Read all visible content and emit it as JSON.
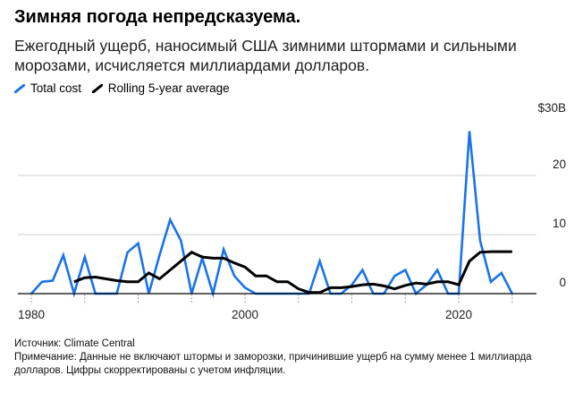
{
  "header": {
    "title": "Зимняя погода непредсказуема.",
    "subtitle": "Ежегодный ущерб, наносимый США зимними штормами и сильными морозами, исчисляется миллиардами долларов."
  },
  "legend": {
    "items": [
      {
        "label": "Total cost",
        "color": "#1a73e8"
      },
      {
        "label": "Rolling 5-year average",
        "color": "#000000"
      }
    ]
  },
  "footer": {
    "source": "Источник: Climate Central",
    "note": "Примечание: Данные не включают штормы и заморозки, причинившие ущерб на сумму менее 1 миллиарда долларов. Цифры скорректированы с учетом инфляции."
  },
  "chart_data": {
    "type": "line",
    "xlim": [
      1980,
      2025
    ],
    "ylim": [
      0,
      30
    ],
    "x_ticks": [
      {
        "value": 1980,
        "label": "1980"
      },
      {
        "value": 2000,
        "label": "2000"
      },
      {
        "value": 2020,
        "label": "2020"
      }
    ],
    "y_ticks": [
      {
        "value": 0,
        "label": "0"
      },
      {
        "value": 10,
        "label": "10"
      },
      {
        "value": 20,
        "label": "20"
      },
      {
        "value": 30,
        "label": "$30B"
      }
    ],
    "grid": true,
    "legend_position": "top-left",
    "series": [
      {
        "name": "Total cost",
        "color": "#1a73e8",
        "x": [
          1980,
          1981,
          1982,
          1983,
          1984,
          1985,
          1986,
          1987,
          1988,
          1989,
          1990,
          1991,
          1992,
          1993,
          1994,
          1995,
          1996,
          1997,
          1998,
          1999,
          2000,
          2001,
          2002,
          2003,
          2004,
          2005,
          2006,
          2007,
          2008,
          2009,
          2010,
          2011,
          2012,
          2013,
          2014,
          2015,
          2016,
          2017,
          2018,
          2019,
          2020,
          2021,
          2022,
          2023,
          2024,
          2025
        ],
        "values": [
          0,
          2,
          2.2,
          6.5,
          0,
          6.2,
          0,
          0,
          0,
          7,
          8.5,
          0,
          6.5,
          12.5,
          9,
          0,
          6,
          0,
          7.5,
          3,
          1,
          0,
          0,
          0,
          0,
          0,
          0,
          5.5,
          0,
          0,
          1.5,
          4,
          0,
          0,
          3,
          4,
          0,
          1.5,
          4,
          0,
          0,
          27.5,
          9,
          2,
          3.5,
          0
        ]
      },
      {
        "name": "Rolling 5-year average",
        "color": "#000000",
        "x": [
          1984,
          1985,
          1986,
          1987,
          1988,
          1989,
          1990,
          1991,
          1992,
          1993,
          1994,
          1995,
          1996,
          1997,
          1998,
          1999,
          2000,
          2001,
          2002,
          2003,
          2004,
          2005,
          2006,
          2007,
          2008,
          2009,
          2010,
          2011,
          2012,
          2013,
          2014,
          2015,
          2016,
          2017,
          2018,
          2019,
          2020,
          2021,
          2022,
          2023,
          2024,
          2025
        ],
        "values": [
          2,
          2.7,
          2.8,
          2.5,
          2.2,
          2,
          2,
          3.5,
          2.5,
          4,
          5.5,
          7,
          6.2,
          6,
          6,
          5.2,
          4.5,
          3,
          3,
          2,
          2,
          0.8,
          0.2,
          0.2,
          1,
          1,
          1.2,
          1.5,
          1.6,
          1.3,
          0.8,
          1.4,
          1.8,
          1.6,
          2,
          2,
          1.5,
          5.5,
          7,
          7.1,
          7.1,
          7.1
        ]
      }
    ]
  }
}
